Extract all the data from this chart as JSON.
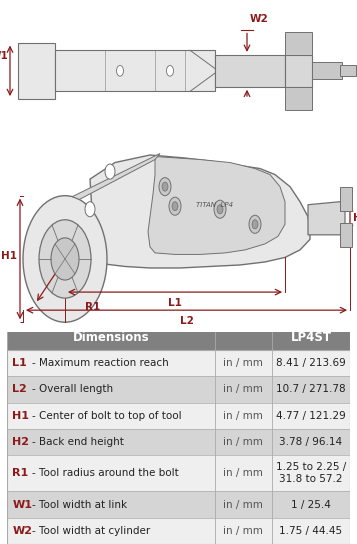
{
  "bg_color": "#ffffff",
  "dark_red": "#8B1A1A",
  "line_color": "#707070",
  "fill_light": "#e8e8e8",
  "fill_med": "#d8d8d8",
  "fill_dark": "#c8c8c8",
  "table_header_bg": "#808080",
  "table_header_fg": "#ffffff",
  "table_row_odd": "#d5d5d5",
  "table_row_even": "#efefef",
  "table_label_color": "#8B1A1A",
  "table_rows": [
    [
      "L1",
      "Maximum reaction reach",
      "in / mm",
      "8.41 / 213.69"
    ],
    [
      "L2",
      "Overall length",
      "in / mm",
      "10.7 / 271.78"
    ],
    [
      "H1",
      "Center of bolt to top of tool",
      "in / mm",
      "4.77 / 121.29"
    ],
    [
      "H2",
      "Back end height",
      "in / mm",
      "3.78 / 96.14"
    ],
    [
      "R1",
      "Tool radius around the bolt",
      "in / mm",
      "1.25 to 2.25 /\n31.8 to 57.2"
    ],
    [
      "W1",
      "Tool width at link",
      "in / mm",
      "1 / 25.4"
    ],
    [
      "W2",
      "Tool width at cylinder",
      "in / mm",
      "1.75 / 44.45"
    ]
  ]
}
